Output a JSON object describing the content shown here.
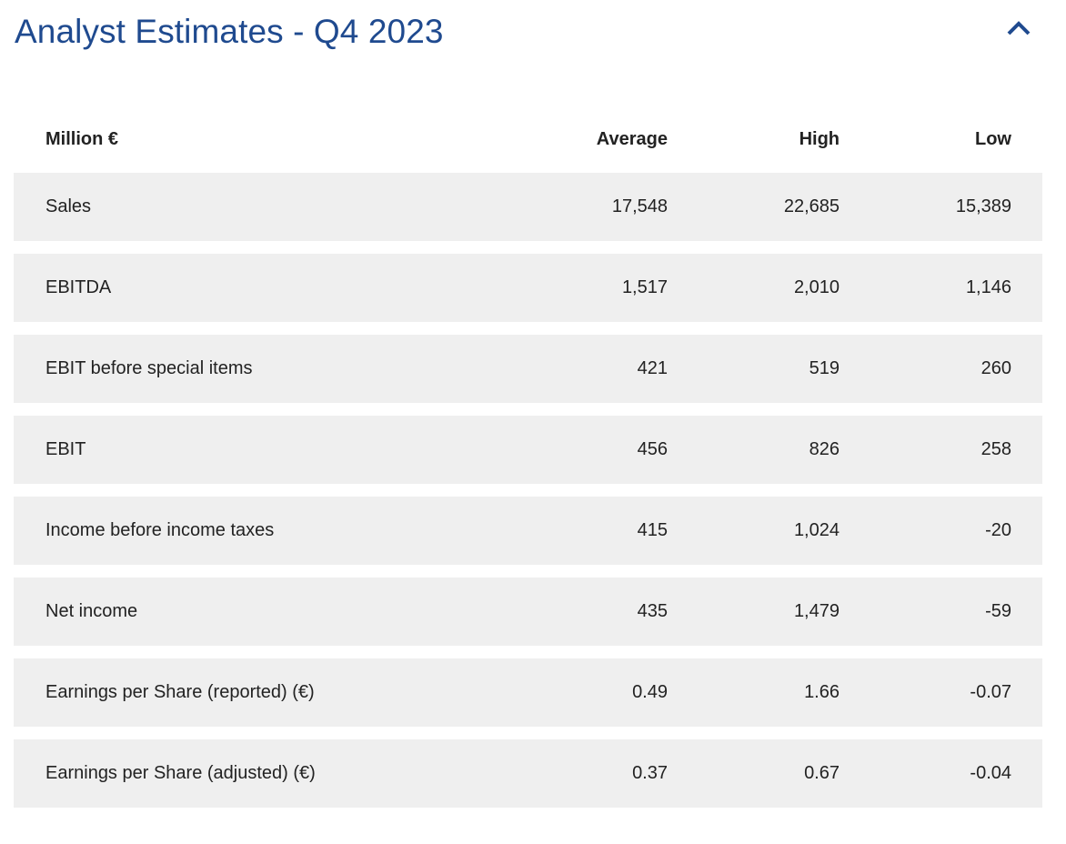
{
  "header": {
    "title": "Analyst Estimates - Q4 2023",
    "collapse_icon": "chevron-up-icon",
    "accent_color": "#1f4a8f"
  },
  "table": {
    "columns": [
      "Million €",
      "Average",
      "High",
      "Low"
    ],
    "rows": [
      {
        "label": "Sales",
        "average": "17,548",
        "high": "22,685",
        "low": "15,389"
      },
      {
        "label": "EBITDA",
        "average": "1,517",
        "high": "2,010",
        "low": "1,146"
      },
      {
        "label": "EBIT before special items",
        "average": "421",
        "high": "519",
        "low": "260"
      },
      {
        "label": "EBIT",
        "average": "456",
        "high": "826",
        "low": "258"
      },
      {
        "label": "Income before income taxes",
        "average": "415",
        "high": "1,024",
        "low": "-20"
      },
      {
        "label": "Net income",
        "average": "435",
        "high": "1,479",
        "low": "-59"
      },
      {
        "label": "Earnings per Share (reported) (€)",
        "average": "0.49",
        "high": "1.66",
        "low": "-0.07"
      },
      {
        "label": "Earnings per Share (adjusted) (€)",
        "average": "0.37",
        "high": "0.67",
        "low": "-0.04"
      }
    ],
    "row_background": "#efefef"
  }
}
